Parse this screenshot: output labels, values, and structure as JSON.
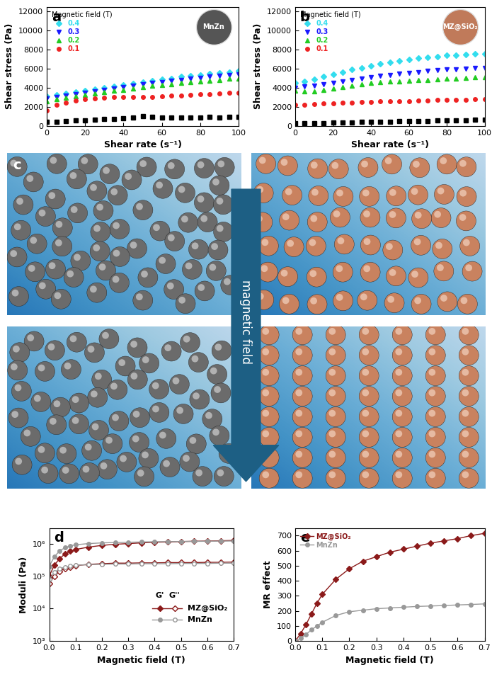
{
  "chart_data": [
    {
      "type": "scatter",
      "annotations": [
        "a",
        "MnZn"
      ],
      "x_label": "Shear rate (s⁻¹)",
      "y_label": "Shear stress (Pa)",
      "legend": "upper left",
      "legend_title": "Magnetic field (T)",
      "xlim": [
        0,
        100
      ],
      "xticks": [
        0,
        20,
        40,
        60,
        80,
        100
      ],
      "ylim": [
        0,
        12500
      ],
      "yticks": [
        0,
        2000,
        4000,
        6000,
        8000,
        10000,
        12000
      ],
      "x": [
        0,
        5,
        10,
        15,
        20,
        25,
        30,
        35,
        40,
        45,
        50,
        55,
        60,
        65,
        70,
        75,
        80,
        85,
        90,
        95,
        100
      ],
      "series": [
        {
          "name": "0.4",
          "color": "#33ddee",
          "marker": "diamond",
          "line_style": "none",
          "values": [
            3100,
            3250,
            3400,
            3550,
            3700,
            3850,
            4000,
            4150,
            4300,
            4450,
            4600,
            4750,
            4900,
            5000,
            5150,
            5250,
            5350,
            5450,
            5550,
            5650,
            5750
          ]
        },
        {
          "name": "0.3",
          "color": "#1a1aff",
          "marker": "triangle_down",
          "line_style": "none",
          "values": [
            2900,
            3050,
            3200,
            3350,
            3500,
            3650,
            3800,
            3950,
            4100,
            4250,
            4350,
            4500,
            4600,
            4750,
            4850,
            4950,
            5050,
            5150,
            5250,
            5350,
            5400
          ]
        },
        {
          "name": "0.2",
          "color": "#22cc22",
          "marker": "triangle_up",
          "line_style": "none",
          "values": [
            2600,
            2800,
            2950,
            3100,
            3250,
            3400,
            3550,
            3700,
            3800,
            3950,
            4050,
            4200,
            4300,
            4400,
            4500,
            4600,
            4700,
            4750,
            4850,
            4950,
            5000
          ]
        },
        {
          "name": "0.1",
          "color": "#ee2222",
          "marker": "circle",
          "line_style": "none",
          "values": [
            1600,
            2200,
            2450,
            2650,
            2800,
            2900,
            2950,
            3000,
            3050,
            3050,
            3000,
            3050,
            3100,
            3150,
            3200,
            3250,
            3300,
            3350,
            3400,
            3450,
            3500
          ]
        },
        {
          "color": "#000000",
          "marker": "square",
          "line_style": "none",
          "values": [
            400,
            450,
            500,
            550,
            600,
            650,
            700,
            750,
            800,
            900,
            1000,
            950,
            900,
            850,
            850,
            900,
            900,
            950,
            900,
            950,
            950
          ]
        }
      ]
    },
    {
      "type": "scatter",
      "annotations": [
        "b",
        "MZ@SiO₂"
      ],
      "x_label": "Shear rate (s⁻¹)",
      "y_label": "Shear stress (Pa)",
      "legend": "upper left",
      "legend_title": "Magnetic field (T)",
      "xlim": [
        0,
        100
      ],
      "xticks": [
        0,
        20,
        40,
        60,
        80,
        100
      ],
      "ylim": [
        0,
        12500
      ],
      "yticks": [
        0,
        2000,
        4000,
        6000,
        8000,
        10000,
        12000
      ],
      "x": [
        0,
        5,
        10,
        15,
        20,
        25,
        30,
        35,
        40,
        45,
        50,
        55,
        60,
        65,
        70,
        75,
        80,
        85,
        90,
        95,
        100
      ],
      "series": [
        {
          "name": "0.4",
          "color": "#33ddee",
          "marker": "diamond",
          "line_style": "none",
          "values": [
            4500,
            4700,
            4900,
            5150,
            5400,
            5650,
            5900,
            6100,
            6300,
            6500,
            6700,
            6850,
            7000,
            7100,
            7200,
            7300,
            7400,
            7450,
            7500,
            7550,
            7600
          ]
        },
        {
          "name": "0.3",
          "color": "#1a1aff",
          "marker": "triangle_down",
          "line_style": "none",
          "values": [
            4000,
            4150,
            4250,
            4350,
            4500,
            4650,
            4800,
            4950,
            5100,
            5250,
            5350,
            5450,
            5550,
            5650,
            5750,
            5850,
            5900,
            5950,
            6000,
            6050,
            6100
          ]
        },
        {
          "name": "0.2",
          "color": "#22cc22",
          "marker": "triangle_up",
          "line_style": "none",
          "values": [
            3700,
            3650,
            3650,
            3800,
            3950,
            4100,
            4250,
            4400,
            4500,
            4600,
            4650,
            4700,
            4750,
            4800,
            4850,
            4900,
            4950,
            5000,
            5050,
            5100,
            5100
          ]
        },
        {
          "name": "0.1",
          "color": "#ee2222",
          "marker": "circle",
          "line_style": "none",
          "values": [
            2200,
            2250,
            2300,
            2350,
            2400,
            2450,
            2450,
            2500,
            2500,
            2550,
            2550,
            2600,
            2600,
            2650,
            2650,
            2700,
            2700,
            2750,
            2750,
            2800,
            2800
          ]
        },
        {
          "color": "#000000",
          "marker": "square",
          "line_style": "none",
          "values": [
            300,
            300,
            300,
            320,
            340,
            360,
            380,
            400,
            420,
            440,
            460,
            480,
            500,
            520,
            540,
            560,
            580,
            600,
            610,
            630,
            650
          ]
        }
      ]
    },
    {
      "type": "line",
      "annotations": [
        "d"
      ],
      "x_label": "Magnetic field (T)",
      "y_label": "Moduli (Pa)",
      "log": "y",
      "legend": "lower right",
      "legend_columns": [
        "G'",
        "G''"
      ],
      "xlim": [
        0,
        0.7
      ],
      "xticks": [
        {
          "value": 0,
          "label": "0.0"
        },
        0.1,
        0.2,
        0.3,
        0.4,
        0.5,
        0.6,
        0.7
      ],
      "ylim": [
        1000,
        3000000
      ],
      "yticks": [
        {
          "value": 1000,
          "label": "10³"
        },
        {
          "value": 10000,
          "label": "10⁴"
        },
        {
          "value": 100000,
          "label": "10⁵"
        },
        {
          "value": 1000000,
          "label": "10⁶"
        }
      ],
      "x": [
        0,
        0.02,
        0.04,
        0.06,
        0.08,
        0.1,
        0.15,
        0.2,
        0.25,
        0.3,
        0.35,
        0.4,
        0.45,
        0.5,
        0.55,
        0.6,
        0.65,
        0.7
      ],
      "series": [
        {
          "name": "MZ@SiO₂",
          "modulus": "G'",
          "color": "#8b1a1a",
          "marker": "diamond",
          "line_style": "solid",
          "values": [
            100000,
            220000,
            350000,
            480000,
            580000,
            660000,
            780000,
            880000,
            950000,
            1000000,
            1050000,
            1100000,
            1120000,
            1150000,
            1180000,
            1200000,
            1220000,
            1250000
          ]
        },
        {
          "name": "MZ@SiO₂",
          "modulus": "G''",
          "color": "#8b1a1a",
          "marker": "open_diamond",
          "line_style": "solid",
          "values": [
            60000,
            100000,
            140000,
            170000,
            190000,
            210000,
            230000,
            240000,
            250000,
            250000,
            255000,
            255000,
            260000,
            260000,
            260000,
            265000,
            265000,
            270000
          ]
        },
        {
          "name": "MnZn",
          "modulus": "G'",
          "color": "#999999",
          "marker": "circle",
          "line_style": "solid",
          "values": [
            200000,
            400000,
            600000,
            750000,
            850000,
            920000,
            1000000,
            1050000,
            1080000,
            1100000,
            1120000,
            1140000,
            1150000,
            1160000,
            1170000,
            1180000,
            1190000,
            1200000
          ]
        },
        {
          "name": "MnZn",
          "modulus": "G''",
          "color": "#999999",
          "marker": "open_circle",
          "line_style": "solid",
          "values": [
            80000,
            130000,
            170000,
            190000,
            205000,
            215000,
            225000,
            230000,
            235000,
            235000,
            240000,
            240000,
            240000,
            245000,
            245000,
            245000,
            250000,
            250000
          ]
        }
      ]
    },
    {
      "type": "line",
      "annotations": [
        "e"
      ],
      "x_label": "Magnetic field (T)",
      "y_label": "MR effect",
      "legend": "upper left",
      "xlim": [
        0,
        0.7
      ],
      "xticks": [
        {
          "value": 0,
          "label": "0.0"
        },
        0.1,
        0.2,
        0.3,
        0.4,
        0.5,
        0.6,
        0.7
      ],
      "ylim": [
        0,
        750
      ],
      "yticks": [
        0,
        100,
        200,
        300,
        400,
        500,
        600,
        700
      ],
      "x": [
        0,
        0.02,
        0.04,
        0.06,
        0.08,
        0.1,
        0.15,
        0.2,
        0.25,
        0.3,
        0.35,
        0.4,
        0.45,
        0.5,
        0.55,
        0.6,
        0.65,
        0.7
      ],
      "series": [
        {
          "name": "MZ@SiO₂",
          "color": "#8b1a1a",
          "marker": "diamond",
          "line_style": "solid",
          "values": [
            0,
            50,
            110,
            180,
            250,
            310,
            410,
            480,
            530,
            560,
            590,
            610,
            630,
            650,
            665,
            680,
            700,
            715
          ]
        },
        {
          "name": "MnZn",
          "color": "#999999",
          "marker": "circle",
          "line_style": "solid",
          "values": [
            0,
            20,
            45,
            75,
            100,
            125,
            170,
            195,
            205,
            215,
            220,
            225,
            230,
            233,
            236,
            240,
            243,
            247
          ]
        }
      ]
    }
  ],
  "diagram": {
    "label": "c",
    "arrow_text": "magnetic field"
  }
}
